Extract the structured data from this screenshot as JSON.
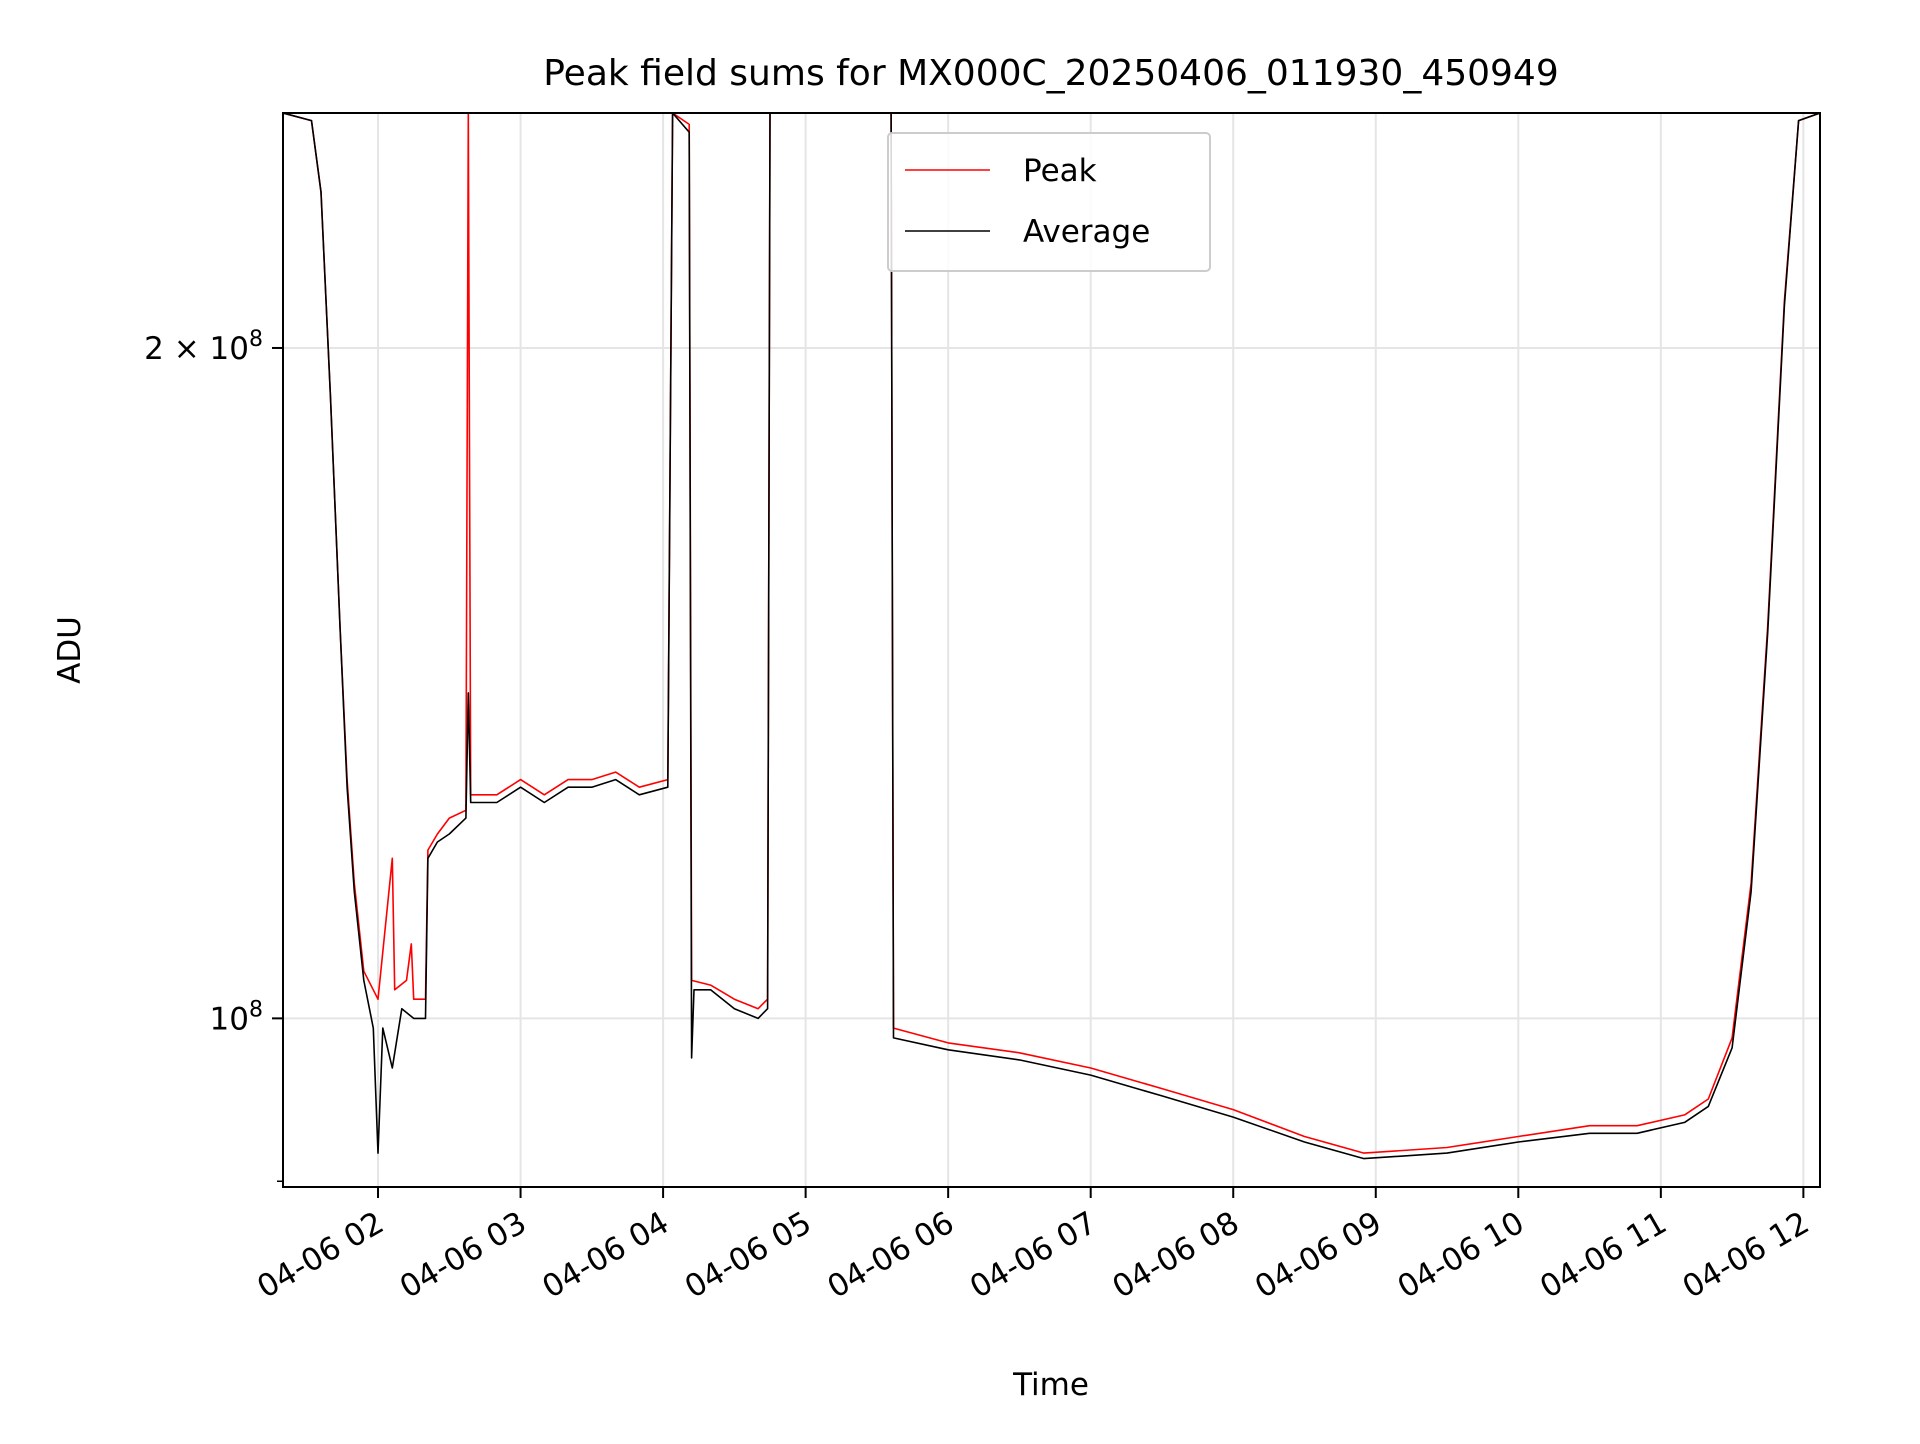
{
  "chart_data": {
    "type": "line",
    "title": "Peak field sums for MX000C_20250406_011930_450949",
    "xlabel": "Time",
    "ylabel": "ADU",
    "y_scale": "log",
    "ylim": [
      84000000,
      255000000
    ],
    "xlim": [
      "2025-04-06 01:20",
      "2025-04-06 12:07"
    ],
    "grid": true,
    "legend": {
      "placement": "upper center",
      "entries": [
        "Peak",
        "Average"
      ]
    },
    "x_ticks": [
      {
        "t": "2025-04-06 02:00",
        "label": "04-06 02"
      },
      {
        "t": "2025-04-06 03:00",
        "label": "04-06 03"
      },
      {
        "t": "2025-04-06 04:00",
        "label": "04-06 04"
      },
      {
        "t": "2025-04-06 05:00",
        "label": "04-06 05"
      },
      {
        "t": "2025-04-06 06:00",
        "label": "04-06 06"
      },
      {
        "t": "2025-04-06 07:00",
        "label": "04-06 07"
      },
      {
        "t": "2025-04-06 08:00",
        "label": "04-06 08"
      },
      {
        "t": "2025-04-06 09:00",
        "label": "04-06 09"
      },
      {
        "t": "2025-04-06 10:00",
        "label": "04-06 10"
      },
      {
        "t": "2025-04-06 11:00",
        "label": "04-06 11"
      },
      {
        "t": "2025-04-06 12:00",
        "label": "04-06 12"
      }
    ],
    "y_ticks": [
      {
        "value": 100000000,
        "label_base": "10",
        "label_exp": "8",
        "label_prefix": ""
      },
      {
        "value": 200000000,
        "label_base": "10",
        "label_exp": "8",
        "label_prefix": "2 × "
      }
    ],
    "series": [
      {
        "name": "Peak",
        "color": "#ff0000",
        "points": [
          [
            "2025-04-06 01:20",
            255000000
          ],
          [
            "2025-04-06 01:32",
            253000000
          ],
          [
            "2025-04-06 01:36",
            235000000
          ],
          [
            "2025-04-06 01:40",
            190000000
          ],
          [
            "2025-04-06 01:44",
            150000000
          ],
          [
            "2025-04-06 01:47",
            128000000
          ],
          [
            "2025-04-06 01:50",
            115000000
          ],
          [
            "2025-04-06 01:54",
            105000000
          ],
          [
            "2025-04-06 02:00",
            102000000
          ],
          [
            "2025-04-06 02:06",
            118000000
          ],
          [
            "2025-04-06 02:07",
            103000000
          ],
          [
            "2025-04-06 02:12",
            104000000
          ],
          [
            "2025-04-06 02:14",
            108000000
          ],
          [
            "2025-04-06 02:15",
            102000000
          ],
          [
            "2025-04-06 02:20",
            102000000
          ],
          [
            "2025-04-06 02:21",
            119000000
          ],
          [
            "2025-04-06 02:25",
            121000000
          ],
          [
            "2025-04-06 02:30",
            123000000
          ],
          [
            "2025-04-06 02:37",
            124000000
          ],
          [
            "2025-04-06 02:38",
            255000000
          ],
          [
            "2025-04-06 02:39",
            126000000
          ],
          [
            "2025-04-06 02:50",
            126000000
          ],
          [
            "2025-04-06 03:00",
            128000000
          ],
          [
            "2025-04-06 03:10",
            126000000
          ],
          [
            "2025-04-06 03:20",
            128000000
          ],
          [
            "2025-04-06 03:30",
            128000000
          ],
          [
            "2025-04-06 03:40",
            129000000
          ],
          [
            "2025-04-06 03:50",
            127000000
          ],
          [
            "2025-04-06 04:02",
            128000000
          ],
          [
            "2025-04-06 04:04",
            255000000
          ],
          [
            "2025-04-06 04:11",
            252000000
          ],
          [
            "2025-04-06 04:12",
            104000000
          ],
          [
            "2025-04-06 04:20",
            103500000
          ],
          [
            "2025-04-06 04:30",
            102000000
          ],
          [
            "2025-04-06 04:40",
            101000000
          ],
          [
            "2025-04-06 04:44",
            102000000
          ],
          [
            "2025-04-06 04:45",
            255000000
          ],
          [
            "2025-04-06 05:36",
            255000000
          ],
          [
            "2025-04-06 05:37",
            99000000
          ],
          [
            "2025-04-06 06:00",
            97500000
          ],
          [
            "2025-04-06 06:30",
            96500000
          ],
          [
            "2025-04-06 07:00",
            95000000
          ],
          [
            "2025-04-06 07:30",
            93000000
          ],
          [
            "2025-04-06 08:00",
            91000000
          ],
          [
            "2025-04-06 08:30",
            88500000
          ],
          [
            "2025-04-06 08:55",
            87000000
          ],
          [
            "2025-04-06 09:30",
            87500000
          ],
          [
            "2025-04-06 10:00",
            88500000
          ],
          [
            "2025-04-06 10:30",
            89500000
          ],
          [
            "2025-04-06 10:50",
            89500000
          ],
          [
            "2025-04-06 11:10",
            90500000
          ],
          [
            "2025-04-06 11:20",
            92000000
          ],
          [
            "2025-04-06 11:30",
            98000000
          ],
          [
            "2025-04-06 11:38",
            115000000
          ],
          [
            "2025-04-06 11:45",
            150000000
          ],
          [
            "2025-04-06 11:52",
            210000000
          ],
          [
            "2025-04-06 11:58",
            253000000
          ],
          [
            "2025-04-06 12:07",
            255000000
          ]
        ]
      },
      {
        "name": "Average",
        "color": "#000000",
        "points": [
          [
            "2025-04-06 01:20",
            255000000
          ],
          [
            "2025-04-06 01:32",
            253000000
          ],
          [
            "2025-04-06 01:36",
            235000000
          ],
          [
            "2025-04-06 01:40",
            190000000
          ],
          [
            "2025-04-06 01:44",
            150000000
          ],
          [
            "2025-04-06 01:47",
            127000000
          ],
          [
            "2025-04-06 01:50",
            114000000
          ],
          [
            "2025-04-06 01:54",
            104000000
          ],
          [
            "2025-04-06 01:58",
            99000000
          ],
          [
            "2025-04-06 02:00",
            87000000
          ],
          [
            "2025-04-06 02:02",
            99000000
          ],
          [
            "2025-04-06 02:06",
            95000000
          ],
          [
            "2025-04-06 02:10",
            101000000
          ],
          [
            "2025-04-06 02:15",
            100000000
          ],
          [
            "2025-04-06 02:20",
            100000000
          ],
          [
            "2025-04-06 02:21",
            118000000
          ],
          [
            "2025-04-06 02:25",
            120000000
          ],
          [
            "2025-04-06 02:30",
            121000000
          ],
          [
            "2025-04-06 02:37",
            123000000
          ],
          [
            "2025-04-06 02:38",
            140000000
          ],
          [
            "2025-04-06 02:39",
            125000000
          ],
          [
            "2025-04-06 02:50",
            125000000
          ],
          [
            "2025-04-06 03:00",
            127000000
          ],
          [
            "2025-04-06 03:10",
            125000000
          ],
          [
            "2025-04-06 03:20",
            127000000
          ],
          [
            "2025-04-06 03:30",
            127000000
          ],
          [
            "2025-04-06 03:40",
            128000000
          ],
          [
            "2025-04-06 03:50",
            126000000
          ],
          [
            "2025-04-06 04:02",
            127000000
          ],
          [
            "2025-04-06 04:04",
            255000000
          ],
          [
            "2025-04-06 04:11",
            250000000
          ],
          [
            "2025-04-06 04:12",
            96000000
          ],
          [
            "2025-04-06 04:13",
            103000000
          ],
          [
            "2025-04-06 04:20",
            103000000
          ],
          [
            "2025-04-06 04:30",
            101000000
          ],
          [
            "2025-04-06 04:40",
            100000000
          ],
          [
            "2025-04-06 04:44",
            101000000
          ],
          [
            "2025-04-06 04:45",
            255000000
          ],
          [
            "2025-04-06 05:36",
            255000000
          ],
          [
            "2025-04-06 05:37",
            98000000
          ],
          [
            "2025-04-06 06:00",
            96800000
          ],
          [
            "2025-04-06 06:30",
            95800000
          ],
          [
            "2025-04-06 07:00",
            94300000
          ],
          [
            "2025-04-06 07:30",
            92300000
          ],
          [
            "2025-04-06 08:00",
            90300000
          ],
          [
            "2025-04-06 08:30",
            88000000
          ],
          [
            "2025-04-06 08:55",
            86500000
          ],
          [
            "2025-04-06 09:30",
            87000000
          ],
          [
            "2025-04-06 10:00",
            88000000
          ],
          [
            "2025-04-06 10:30",
            88800000
          ],
          [
            "2025-04-06 10:50",
            88800000
          ],
          [
            "2025-04-06 11:10",
            89800000
          ],
          [
            "2025-04-06 11:20",
            91300000
          ],
          [
            "2025-04-06 11:30",
            97000000
          ],
          [
            "2025-04-06 11:38",
            114000000
          ],
          [
            "2025-04-06 11:45",
            149000000
          ],
          [
            "2025-04-06 11:52",
            209000000
          ],
          [
            "2025-04-06 11:58",
            253000000
          ],
          [
            "2025-04-06 12:07",
            255000000
          ]
        ]
      }
    ]
  }
}
